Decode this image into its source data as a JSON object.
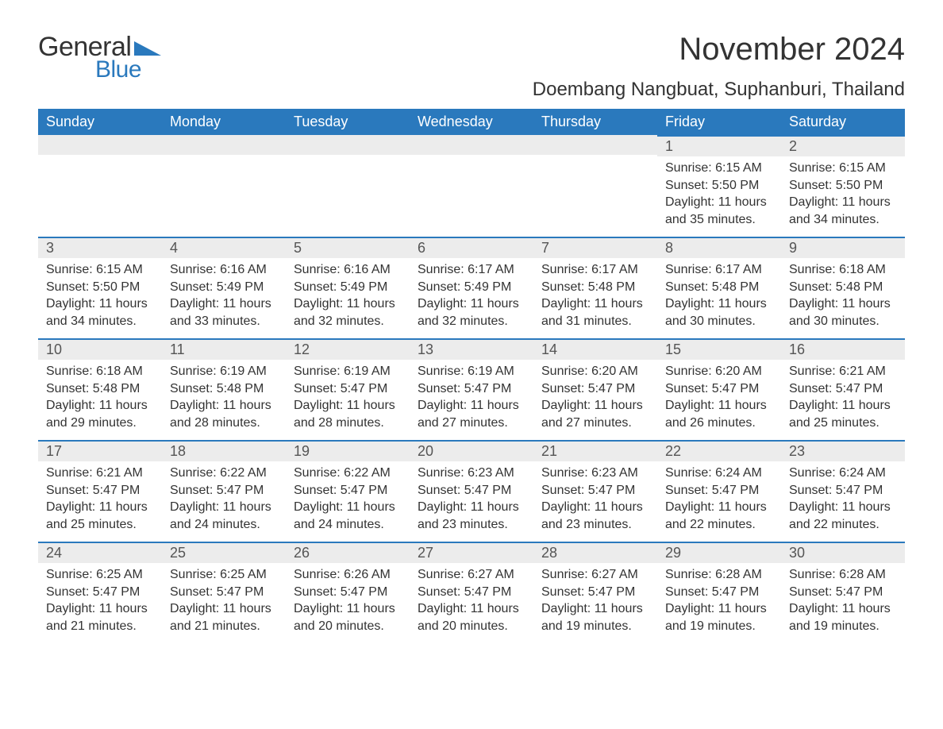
{
  "logo": {
    "text1": "General",
    "text2": "Blue",
    "accent_color": "#2a79bd"
  },
  "title": "November 2024",
  "location": "Doembang Nangbuat, Suphanburi, Thailand",
  "colors": {
    "header_bg": "#2a79bd",
    "header_text": "#ffffff",
    "band_bg": "#ececec",
    "band_border": "#2a79bd",
    "body_text": "#333333",
    "page_bg": "#ffffff"
  },
  "typography": {
    "title_fontsize": 40,
    "location_fontsize": 24,
    "header_fontsize": 18,
    "daynum_fontsize": 18,
    "body_fontsize": 16
  },
  "weekdays": [
    "Sunday",
    "Monday",
    "Tuesday",
    "Wednesday",
    "Thursday",
    "Friday",
    "Saturday"
  ],
  "weeks": [
    [
      null,
      null,
      null,
      null,
      null,
      {
        "n": "1",
        "sunrise": "6:15 AM",
        "sunset": "5:50 PM",
        "daylight": "11 hours and 35 minutes."
      },
      {
        "n": "2",
        "sunrise": "6:15 AM",
        "sunset": "5:50 PM",
        "daylight": "11 hours and 34 minutes."
      }
    ],
    [
      {
        "n": "3",
        "sunrise": "6:15 AM",
        "sunset": "5:50 PM",
        "daylight": "11 hours and 34 minutes."
      },
      {
        "n": "4",
        "sunrise": "6:16 AM",
        "sunset": "5:49 PM",
        "daylight": "11 hours and 33 minutes."
      },
      {
        "n": "5",
        "sunrise": "6:16 AM",
        "sunset": "5:49 PM",
        "daylight": "11 hours and 32 minutes."
      },
      {
        "n": "6",
        "sunrise": "6:17 AM",
        "sunset": "5:49 PM",
        "daylight": "11 hours and 32 minutes."
      },
      {
        "n": "7",
        "sunrise": "6:17 AM",
        "sunset": "5:48 PM",
        "daylight": "11 hours and 31 minutes."
      },
      {
        "n": "8",
        "sunrise": "6:17 AM",
        "sunset": "5:48 PM",
        "daylight": "11 hours and 30 minutes."
      },
      {
        "n": "9",
        "sunrise": "6:18 AM",
        "sunset": "5:48 PM",
        "daylight": "11 hours and 30 minutes."
      }
    ],
    [
      {
        "n": "10",
        "sunrise": "6:18 AM",
        "sunset": "5:48 PM",
        "daylight": "11 hours and 29 minutes."
      },
      {
        "n": "11",
        "sunrise": "6:19 AM",
        "sunset": "5:48 PM",
        "daylight": "11 hours and 28 minutes."
      },
      {
        "n": "12",
        "sunrise": "6:19 AM",
        "sunset": "5:47 PM",
        "daylight": "11 hours and 28 minutes."
      },
      {
        "n": "13",
        "sunrise": "6:19 AM",
        "sunset": "5:47 PM",
        "daylight": "11 hours and 27 minutes."
      },
      {
        "n": "14",
        "sunrise": "6:20 AM",
        "sunset": "5:47 PM",
        "daylight": "11 hours and 27 minutes."
      },
      {
        "n": "15",
        "sunrise": "6:20 AM",
        "sunset": "5:47 PM",
        "daylight": "11 hours and 26 minutes."
      },
      {
        "n": "16",
        "sunrise": "6:21 AM",
        "sunset": "5:47 PM",
        "daylight": "11 hours and 25 minutes."
      }
    ],
    [
      {
        "n": "17",
        "sunrise": "6:21 AM",
        "sunset": "5:47 PM",
        "daylight": "11 hours and 25 minutes."
      },
      {
        "n": "18",
        "sunrise": "6:22 AM",
        "sunset": "5:47 PM",
        "daylight": "11 hours and 24 minutes."
      },
      {
        "n": "19",
        "sunrise": "6:22 AM",
        "sunset": "5:47 PM",
        "daylight": "11 hours and 24 minutes."
      },
      {
        "n": "20",
        "sunrise": "6:23 AM",
        "sunset": "5:47 PM",
        "daylight": "11 hours and 23 minutes."
      },
      {
        "n": "21",
        "sunrise": "6:23 AM",
        "sunset": "5:47 PM",
        "daylight": "11 hours and 23 minutes."
      },
      {
        "n": "22",
        "sunrise": "6:24 AM",
        "sunset": "5:47 PM",
        "daylight": "11 hours and 22 minutes."
      },
      {
        "n": "23",
        "sunrise": "6:24 AM",
        "sunset": "5:47 PM",
        "daylight": "11 hours and 22 minutes."
      }
    ],
    [
      {
        "n": "24",
        "sunrise": "6:25 AM",
        "sunset": "5:47 PM",
        "daylight": "11 hours and 21 minutes."
      },
      {
        "n": "25",
        "sunrise": "6:25 AM",
        "sunset": "5:47 PM",
        "daylight": "11 hours and 21 minutes."
      },
      {
        "n": "26",
        "sunrise": "6:26 AM",
        "sunset": "5:47 PM",
        "daylight": "11 hours and 20 minutes."
      },
      {
        "n": "27",
        "sunrise": "6:27 AM",
        "sunset": "5:47 PM",
        "daylight": "11 hours and 20 minutes."
      },
      {
        "n": "28",
        "sunrise": "6:27 AM",
        "sunset": "5:47 PM",
        "daylight": "11 hours and 19 minutes."
      },
      {
        "n": "29",
        "sunrise": "6:28 AM",
        "sunset": "5:47 PM",
        "daylight": "11 hours and 19 minutes."
      },
      {
        "n": "30",
        "sunrise": "6:28 AM",
        "sunset": "5:47 PM",
        "daylight": "11 hours and 19 minutes."
      }
    ]
  ],
  "labels": {
    "sunrise": "Sunrise: ",
    "sunset": "Sunset: ",
    "daylight": "Daylight: "
  }
}
